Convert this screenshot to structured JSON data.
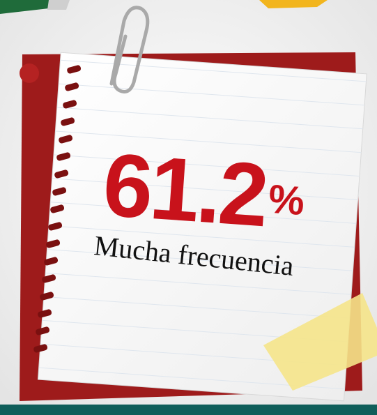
{
  "stat": {
    "number": 61.2,
    "unit": "%",
    "label": "Mucha frecuencia"
  }
}
